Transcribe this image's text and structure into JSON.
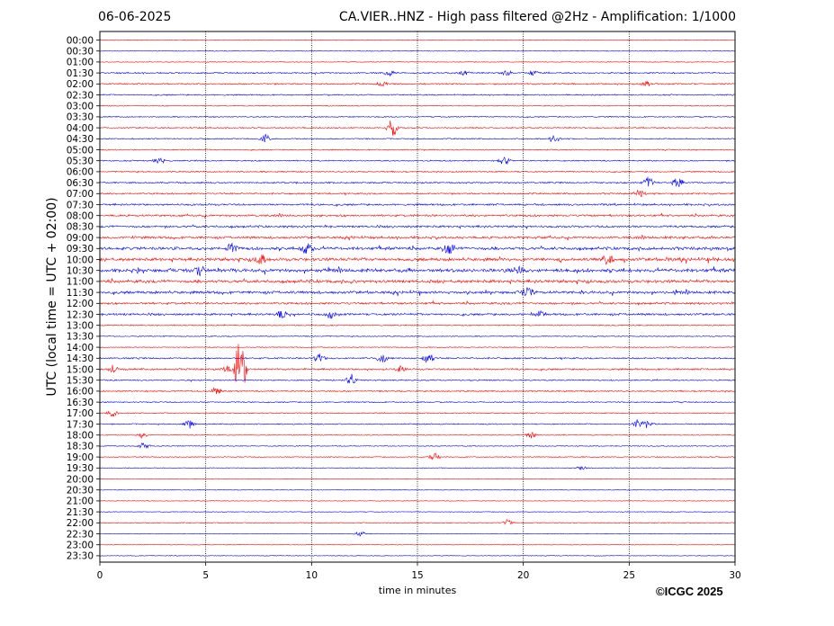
{
  "header": {
    "date": "06-06-2025",
    "title": "CA.VIER..HNZ - High pass filtered @2Hz - Amplification: 1/1000"
  },
  "footer": {
    "copyright": "©ICGC 2025"
  },
  "colors": {
    "trace_a": "#ff0000",
    "trace_b": "#0000ff",
    "gridline": "#000000"
  },
  "chart_data": {
    "type": "line",
    "title": "CA.VIER..HNZ - High pass filtered @2Hz - Amplification: 1/1000",
    "xlabel": "time in minutes",
    "ylabel": "UTC (local time = UTC + 02:00)",
    "xlim": [
      0,
      30
    ],
    "xticks": [
      0,
      5,
      10,
      15,
      20,
      25,
      30
    ],
    "x_grid": "vertical dotted lines at each 5 minutes",
    "rows": [
      "00:00",
      "00:30",
      "01:00",
      "01:30",
      "02:00",
      "02:30",
      "03:00",
      "03:30",
      "04:00",
      "04:30",
      "05:00",
      "05:30",
      "06:00",
      "06:30",
      "07:00",
      "07:30",
      "08:00",
      "08:30",
      "09:00",
      "09:30",
      "10:00",
      "10:30",
      "11:00",
      "11:30",
      "12:00",
      "12:30",
      "13:00",
      "13:30",
      "14:00",
      "14:30",
      "15:00",
      "15:30",
      "16:00",
      "16:30",
      "17:00",
      "17:30",
      "18:00",
      "18:30",
      "19:00",
      "19:30",
      "20:00",
      "20:30",
      "21:00",
      "21:30",
      "22:00",
      "22:30",
      "23:00",
      "23:30"
    ],
    "row_colors": "alternating: rows starting on the hour in red, half-hour rows in blue",
    "activity": [
      0.05,
      0.05,
      0.05,
      0.3,
      0.3,
      0.25,
      0.1,
      0.2,
      0.25,
      0.2,
      0.2,
      0.25,
      0.25,
      0.35,
      0.35,
      0.45,
      0.5,
      0.55,
      0.6,
      0.8,
      0.85,
      0.95,
      0.85,
      0.75,
      0.55,
      0.55,
      0.2,
      0.15,
      0.1,
      0.35,
      0.4,
      0.25,
      0.3,
      0.2,
      0.15,
      0.2,
      0.1,
      0.1,
      0.15,
      0.05,
      0.03,
      0.03,
      0.03,
      0.03,
      0.08,
      0.05,
      0.02,
      0.02
    ],
    "events": [
      {
        "row": "01:30",
        "minutes": [
          13.7,
          17.2,
          19.2,
          20.5
        ],
        "size": 0.3
      },
      {
        "row": "02:00",
        "minutes": [
          13.3,
          25.8
        ],
        "size": 0.3
      },
      {
        "row": "04:00",
        "minutes": [
          13.8
        ],
        "size": 1.0
      },
      {
        "row": "04:30",
        "minutes": [
          7.8,
          21.5
        ],
        "size": 0.5
      },
      {
        "row": "05:30",
        "minutes": [
          2.8,
          19.1
        ],
        "size": 0.5
      },
      {
        "row": "06:30",
        "minutes": [
          27.3,
          25.9
        ],
        "size": 0.7
      },
      {
        "row": "07:00",
        "minutes": [
          25.5
        ],
        "size": 0.5
      },
      {
        "row": "09:30",
        "minutes": [
          9.8,
          6.2,
          16.5
        ],
        "size": 0.7
      },
      {
        "row": "10:00",
        "minutes": [
          7.6,
          24.0
        ],
        "size": 0.6
      },
      {
        "row": "10:30",
        "minutes": [
          4.7,
          19.7
        ],
        "size": 0.6
      },
      {
        "row": "11:30",
        "minutes": [
          20.2
        ],
        "size": 0.5
      },
      {
        "row": "12:30",
        "minutes": [
          8.6,
          10.9,
          20.8
        ],
        "size": 0.5
      },
      {
        "row": "14:30",
        "minutes": [
          10.4,
          13.3,
          15.5
        ],
        "size": 0.6
      },
      {
        "row": "15:00",
        "minutes": [
          6.65
        ],
        "size": 4.5
      },
      {
        "row": "15:00",
        "minutes": [
          0.6,
          6.0,
          14.2
        ],
        "size": 0.4
      },
      {
        "row": "15:30",
        "minutes": [
          11.9
        ],
        "size": 0.6
      },
      {
        "row": "16:00",
        "minutes": [
          5.5
        ],
        "size": 0.5
      },
      {
        "row": "17:00",
        "minutes": [
          0.6
        ],
        "size": 0.4
      },
      {
        "row": "17:30",
        "minutes": [
          4.2,
          25.4,
          25.9
        ],
        "size": 0.5
      },
      {
        "row": "18:00",
        "minutes": [
          2.0,
          20.4
        ],
        "size": 0.4
      },
      {
        "row": "18:30",
        "minutes": [
          2.1
        ],
        "size": 0.4
      },
      {
        "row": "19:00",
        "minutes": [
          15.8
        ],
        "size": 0.4
      },
      {
        "row": "19:30",
        "minutes": [
          22.8
        ],
        "size": 0.3
      },
      {
        "row": "22:00",
        "minutes": [
          19.3
        ],
        "size": 0.4
      },
      {
        "row": "22:30",
        "minutes": [
          12.3
        ],
        "size": 0.3
      }
    ]
  }
}
